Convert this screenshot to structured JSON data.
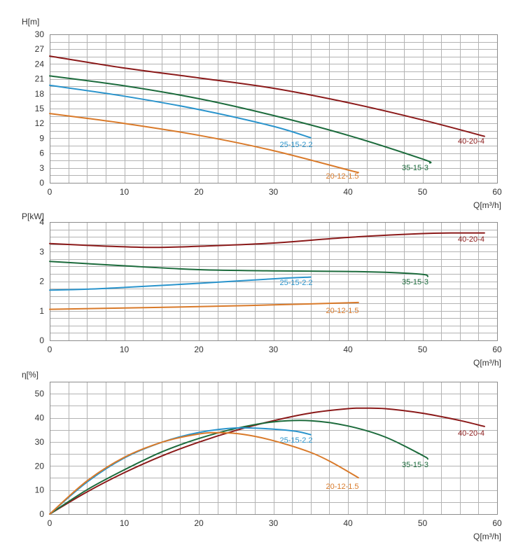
{
  "chart_data": [
    {
      "type": "line",
      "ylabel": "H[m]",
      "xlabel": "Q[m³/h]",
      "xlim": [
        0,
        60
      ],
      "ylim": [
        0,
        30
      ],
      "x_ticks": [
        0,
        10,
        20,
        30,
        40,
        50,
        60
      ],
      "y_ticks": [
        0,
        3,
        6,
        9,
        12,
        15,
        18,
        21,
        24,
        27,
        30
      ],
      "grid": true,
      "series": [
        {
          "name": "40-20-4",
          "color": "#8b1a1a",
          "points": [
            [
              0,
              25.6
            ],
            [
              10,
              23.2
            ],
            [
              20,
              21.2
            ],
            [
              30,
              19.1
            ],
            [
              40,
              16.2
            ],
            [
              50,
              12.7
            ],
            [
              58.3,
              9.4
            ]
          ]
        },
        {
          "name": "35-15-3",
          "color": "#1c6b3c",
          "points": [
            [
              0,
              21.6
            ],
            [
              10,
              19.6
            ],
            [
              20,
              17.0
            ],
            [
              30,
              13.6
            ],
            [
              40,
              9.6
            ],
            [
              50,
              4.8
            ],
            [
              51,
              4.0
            ]
          ]
        },
        {
          "name": "25-15-2.2",
          "color": "#2a94cc",
          "points": [
            [
              0,
              19.7
            ],
            [
              10,
              17.5
            ],
            [
              20,
              14.8
            ],
            [
              30,
              11.4
            ],
            [
              35,
              9.1
            ]
          ]
        },
        {
          "name": "20-12-1.5",
          "color": "#d97a2a",
          "points": [
            [
              0,
              14.0
            ],
            [
              10,
              12.0
            ],
            [
              20,
              9.6
            ],
            [
              30,
              6.5
            ],
            [
              40,
              2.6
            ],
            [
              41.4,
              2.1
            ]
          ]
        }
      ]
    },
    {
      "type": "line",
      "ylabel": "P[kW]",
      "xlabel": "Q[m³/h]",
      "xlim": [
        0,
        60
      ],
      "ylim": [
        0,
        4
      ],
      "x_ticks": [
        0,
        10,
        20,
        30,
        40,
        50,
        60
      ],
      "y_ticks": [
        0,
        1,
        2,
        3,
        4
      ],
      "grid": true,
      "series": [
        {
          "name": "40-20-4",
          "color": "#8b1a1a",
          "points": [
            [
              0,
              3.27
            ],
            [
              7,
              3.19
            ],
            [
              14,
              3.14
            ],
            [
              21,
              3.19
            ],
            [
              30,
              3.29
            ],
            [
              40,
              3.48
            ],
            [
              50,
              3.61
            ],
            [
              55,
              3.63
            ],
            [
              58.3,
              3.63
            ]
          ]
        },
        {
          "name": "35-15-3",
          "color": "#1c6b3c",
          "points": [
            [
              0,
              2.67
            ],
            [
              10,
              2.52
            ],
            [
              20,
              2.39
            ],
            [
              30,
              2.35
            ],
            [
              40,
              2.33
            ],
            [
              45,
              2.3
            ],
            [
              50,
              2.23
            ],
            [
              50.7,
              2.16
            ]
          ]
        },
        {
          "name": "25-15-2.2",
          "color": "#2a94cc",
          "points": [
            [
              0,
              1.7
            ],
            [
              5,
              1.73
            ],
            [
              10,
              1.79
            ],
            [
              20,
              1.93
            ],
            [
              30,
              2.08
            ],
            [
              35,
              2.14
            ]
          ]
        },
        {
          "name": "20-12-1.5",
          "color": "#d97a2a",
          "points": [
            [
              0,
              1.05
            ],
            [
              20,
              1.14
            ],
            [
              30,
              1.2
            ],
            [
              41.4,
              1.28
            ]
          ]
        }
      ]
    },
    {
      "type": "line",
      "ylabel": "η[%]",
      "xlabel": "Q[m³/h]",
      "xlim": [
        0,
        60
      ],
      "ylim": [
        0,
        55
      ],
      "x_ticks": [
        0,
        10,
        20,
        30,
        40,
        50,
        60
      ],
      "y_ticks": [
        0,
        10,
        20,
        30,
        40,
        50
      ],
      "grid": true,
      "series": [
        {
          "name": "40-20-4",
          "color": "#8b1a1a",
          "points": [
            [
              0,
              0
            ],
            [
              5,
              9.2
            ],
            [
              10,
              17.2
            ],
            [
              15,
              24.1
            ],
            [
              20,
              29.9
            ],
            [
              25,
              34.8
            ],
            [
              30,
              38.8
            ],
            [
              35,
              42.0
            ],
            [
              40,
              43.8
            ],
            [
              42,
              44.0
            ],
            [
              45,
              43.8
            ],
            [
              50,
              41.9
            ],
            [
              55,
              38.9
            ],
            [
              58.3,
              36.4
            ]
          ]
        },
        {
          "name": "35-15-3",
          "color": "#1c6b3c",
          "points": [
            [
              0,
              0
            ],
            [
              5,
              10.1
            ],
            [
              10,
              18.4
            ],
            [
              15,
              25.8
            ],
            [
              20,
              31.4
            ],
            [
              25,
              35.6
            ],
            [
              30,
              38.3
            ],
            [
              35,
              38.8
            ],
            [
              40,
              36.6
            ],
            [
              45,
              32.0
            ],
            [
              50,
              24.4
            ],
            [
              50.7,
              22.9
            ]
          ]
        },
        {
          "name": "25-15-2.2",
          "color": "#2a94cc",
          "points": [
            [
              0,
              0
            ],
            [
              5,
              13.3
            ],
            [
              10,
              23.3
            ],
            [
              15,
              29.8
            ],
            [
              20,
              33.9
            ],
            [
              25,
              35.8
            ],
            [
              30,
              35.3
            ],
            [
              33,
              34.4
            ],
            [
              35,
              33.0
            ]
          ]
        },
        {
          "name": "20-12-1.5",
          "color": "#d97a2a",
          "points": [
            [
              0,
              0
            ],
            [
              5,
              13.8
            ],
            [
              10,
              23.6
            ],
            [
              15,
              29.8
            ],
            [
              20,
              33.3
            ],
            [
              23,
              33.8
            ],
            [
              26,
              33.1
            ],
            [
              30,
              30.5
            ],
            [
              35,
              25.6
            ],
            [
              38,
              21.2
            ],
            [
              41.4,
              15.1
            ]
          ]
        }
      ]
    }
  ]
}
